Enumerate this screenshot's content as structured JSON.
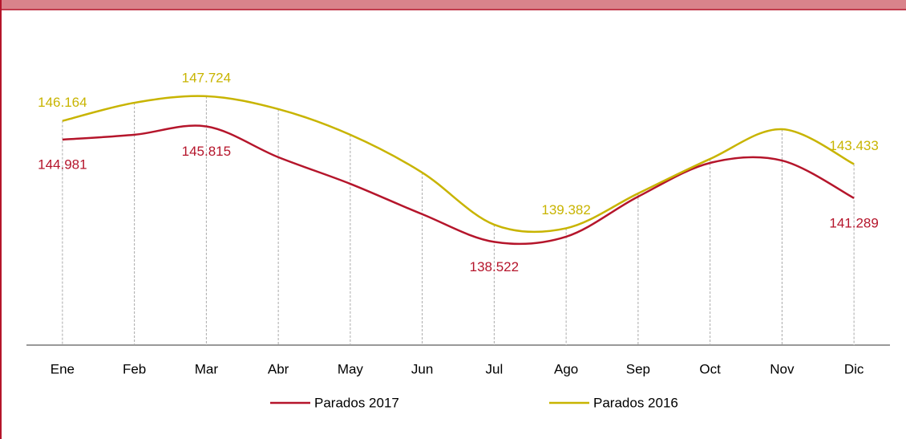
{
  "chart_data": {
    "type": "line",
    "categories": [
      "Ene",
      "Feb",
      "Mar",
      "Abr",
      "May",
      "Jun",
      "Jul",
      "Ago",
      "Sep",
      "Oct",
      "Nov",
      "Dic"
    ],
    "series": [
      {
        "name": "Parados 2017",
        "color": "#b5152b",
        "values": [
          144.981,
          145.29,
          145.815,
          143.87,
          142.19,
          140.27,
          138.522,
          138.85,
          141.38,
          143.51,
          143.66,
          141.289
        ],
        "value_labels": [
          "144.981",
          null,
          "145.815",
          null,
          null,
          null,
          "138.522",
          null,
          null,
          null,
          null,
          "141.289"
        ]
      },
      {
        "name": "Parados 2016",
        "color": "#c8b400",
        "values": [
          146.164,
          147.31,
          147.724,
          146.91,
          145.29,
          142.9,
          139.61,
          139.382,
          141.58,
          143.76,
          145.64,
          143.433
        ],
        "value_labels": [
          "146.164",
          null,
          "147.724",
          null,
          null,
          null,
          null,
          "139.382",
          null,
          null,
          null,
          "143.433"
        ]
      }
    ],
    "ylim": [
      132,
      150
    ],
    "grid": true
  }
}
